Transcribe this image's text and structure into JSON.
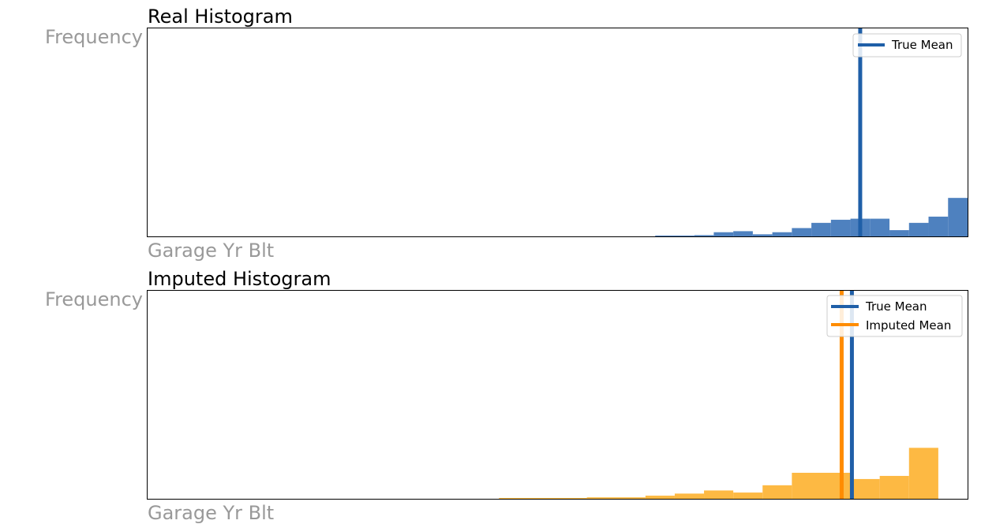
{
  "chart_data": [
    {
      "type": "bar",
      "title": "Real Histogram",
      "xlabel": "Garage Yr Blt",
      "ylabel": "Frequency",
      "xlim": [
        0,
        41
      ],
      "ylim": [
        0,
        100
      ],
      "grid": false,
      "legend_position": "top-right",
      "bar_color": "#4e81bf",
      "bins": [
        {
          "x0": 26,
          "x1": 28,
          "value": 0.4
        },
        {
          "x0": 28,
          "x1": 29,
          "value": 0.6
        },
        {
          "x0": 29,
          "x1": 30,
          "value": 2
        },
        {
          "x0": 30,
          "x1": 31,
          "value": 2.5
        },
        {
          "x0": 31,
          "x1": 32,
          "value": 1
        },
        {
          "x0": 32,
          "x1": 33,
          "value": 2
        },
        {
          "x0": 33,
          "x1": 34,
          "value": 4
        },
        {
          "x0": 34,
          "x1": 35,
          "value": 6.5
        },
        {
          "x0": 35,
          "x1": 36,
          "value": 8
        },
        {
          "x0": 36,
          "x1": 37,
          "value": 8.5
        },
        {
          "x0": 37,
          "x1": 38,
          "value": 8.5
        },
        {
          "x0": 38,
          "x1": 39,
          "value": 3
        },
        {
          "x0": 39,
          "x1": 40,
          "value": 6.5
        },
        {
          "x0": 40,
          "x1": 41,
          "value": 9.5
        },
        {
          "x0": 41,
          "x1": 42,
          "value": 18.5
        }
      ],
      "vlines": [
        {
          "name": "True Mean",
          "x": 36.5,
          "color": "#1f5fa8"
        }
      ]
    },
    {
      "type": "bar",
      "title": "Imputed Histogram",
      "xlabel": "Garage Yr Blt",
      "ylabel": "Frequency",
      "xlim": [
        0,
        27
      ],
      "ylim": [
        0,
        100
      ],
      "grid": false,
      "legend_position": "top-right",
      "bar_color": "#fdb943",
      "bins": [
        {
          "x0": 12,
          "x1": 15,
          "value": 0.4
        },
        {
          "x0": 15,
          "x1": 17,
          "value": 0.7
        },
        {
          "x0": 17,
          "x1": 18,
          "value": 1.5
        },
        {
          "x0": 18,
          "x1": 19,
          "value": 2.5
        },
        {
          "x0": 19,
          "x1": 20,
          "value": 4
        },
        {
          "x0": 20,
          "x1": 21,
          "value": 3
        },
        {
          "x0": 21,
          "x1": 22,
          "value": 6.5
        },
        {
          "x0": 22,
          "x1": 24,
          "value": 12.5
        },
        {
          "x0": 24,
          "x1": 25,
          "value": 9.5
        },
        {
          "x0": 25,
          "x1": 26,
          "value": 11
        },
        {
          "x0": 26,
          "x1": 27,
          "value": 24.5
        }
      ],
      "vlines": [
        {
          "name": "True Mean",
          "x": 24.05,
          "color": "#1f5fa8"
        },
        {
          "name": "Imputed Mean",
          "x": 23.7,
          "color": "#ff8c00"
        }
      ]
    }
  ]
}
